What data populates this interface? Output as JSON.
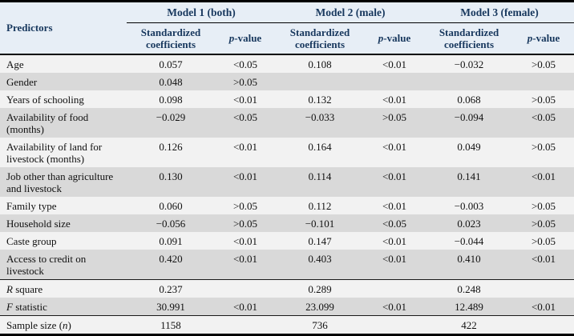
{
  "colors": {
    "header_background": "#e7eef6",
    "header_text": "#17375d",
    "row_stripe_light": "#f2f2f2",
    "row_stripe_dark": "#d9d9d9",
    "border": "#000000"
  },
  "table": {
    "corner_header": "Predictors",
    "models": [
      {
        "name": "Model 1 (both)"
      },
      {
        "name": "Model 2 (male)"
      },
      {
        "name": "Model 3 (female)"
      }
    ],
    "subheaders": {
      "coef": "Standardized coefficients",
      "pvalue_parts": [
        {
          "t": "p",
          "i": true
        },
        {
          "t": "-value"
        }
      ]
    },
    "rows": [
      {
        "label_parts": [
          {
            "t": "Age"
          }
        ],
        "values": [
          "0.057",
          "<0.05",
          "0.108",
          "<0.01",
          "−0.032",
          ">0.05"
        ]
      },
      {
        "label_parts": [
          {
            "t": "Gender"
          }
        ],
        "values": [
          "0.048",
          ">0.05",
          "",
          "",
          "",
          ""
        ]
      },
      {
        "label_parts": [
          {
            "t": "Years of schooling"
          }
        ],
        "values": [
          "0.098",
          "<0.01",
          "0.132",
          "<0.01",
          "0.068",
          ">0.05"
        ]
      },
      {
        "label_parts": [
          {
            "t": "Availability of food (months)"
          }
        ],
        "values": [
          "−0.029",
          "<0.05",
          "−0.033",
          ">0.05",
          "−0.094",
          "<0.05"
        ]
      },
      {
        "label_parts": [
          {
            "t": "Availability of land for livestock (months)"
          }
        ],
        "values": [
          "0.126",
          "<0.01",
          "0.164",
          "<0.01",
          "0.049",
          ">0.05"
        ]
      },
      {
        "label_parts": [
          {
            "t": "Job other than agriculture and livestock"
          }
        ],
        "values": [
          "0.130",
          "<0.01",
          "0.114",
          "<0.01",
          "0.141",
          "<0.01"
        ]
      },
      {
        "label_parts": [
          {
            "t": "Family type"
          }
        ],
        "values": [
          "0.060",
          ">0.05",
          "0.112",
          "<0.01",
          "−0.003",
          ">0.05"
        ]
      },
      {
        "label_parts": [
          {
            "t": "Household size"
          }
        ],
        "values": [
          "−0.056",
          ">0.05",
          "−0.101",
          "<0.05",
          "0.023",
          ">0.05"
        ]
      },
      {
        "label_parts": [
          {
            "t": "Caste group"
          }
        ],
        "values": [
          "0.091",
          "<0.01",
          "0.147",
          "<0.01",
          "−0.044",
          ">0.05"
        ]
      },
      {
        "label_parts": [
          {
            "t": "Access to credit on livestock"
          }
        ],
        "values": [
          "0.420",
          "<0.01",
          "0.403",
          "<0.01",
          "0.410",
          "<0.01"
        ]
      },
      {
        "label_parts": [
          {
            "t": "R",
            "i": true
          },
          {
            "t": " square"
          }
        ],
        "values": [
          "0.237",
          "",
          "0.289",
          "",
          "0.248",
          ""
        ],
        "rule_above": true
      },
      {
        "label_parts": [
          {
            "t": "F",
            "i": true
          },
          {
            "t": " statistic"
          }
        ],
        "values": [
          "30.991",
          "<0.01",
          "23.099",
          "<0.01",
          "12.489",
          "<0.01"
        ]
      },
      {
        "label_parts": [
          {
            "t": "Sample size ("
          },
          {
            "t": "n",
            "i": true
          },
          {
            "t": ")"
          }
        ],
        "values": [
          "1158",
          "",
          "736",
          "",
          "422",
          ""
        ],
        "rule_above": true
      }
    ]
  }
}
